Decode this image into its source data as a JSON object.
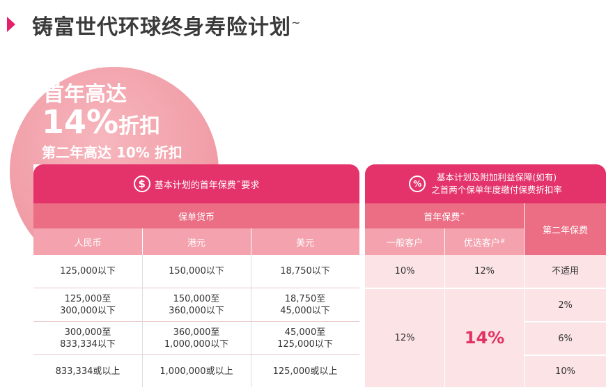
{
  "title": {
    "text": "铸富世代环球终身寿险计划",
    "mark": "~"
  },
  "promo": {
    "line1": "首年高达",
    "line2_big": "14%",
    "line2_small": "折扣",
    "line3": "第二年高达 10% 折扣"
  },
  "left_table": {
    "icon": "dollar-icon",
    "header": "基本计划的首年保费",
    "header_mark": "^",
    "header_suffix": "要求",
    "group_header": "保单货币",
    "columns": [
      "人民币",
      "港元",
      "美元"
    ],
    "rows": [
      [
        "125,000以下",
        "150,000以下",
        "18,750以下"
      ],
      [
        "125,000至\n300,000以下",
        "150,000至\n360,000以下",
        "18,750至\n45,000以下"
      ],
      [
        "300,000至\n833,334以下",
        "360,000至\n1,000,000以下",
        "45,000至\n125,000以下"
      ],
      [
        "833,334或以上",
        "1,000,000或以上",
        "125,000或以上"
      ]
    ]
  },
  "right_table": {
    "icon": "percent-icon",
    "header_line1": "基本计划及附加利益保障(如有)",
    "header_line2": "之首两个保单年度缴付保费折扣率",
    "first_year_header": "首年保费",
    "first_year_mark": "^",
    "second_year_header": "第二年保费",
    "col_general": "一般客户",
    "col_preferred": "优选客户",
    "col_preferred_mark": "#",
    "row1": {
      "general": "10%",
      "preferred": "12%",
      "second": "不适用"
    },
    "merged": {
      "general": "12%",
      "preferred": "14%"
    },
    "second_year": [
      "2%",
      "6%",
      "10%"
    ]
  },
  "colors": {
    "accent": "#e3336a",
    "mid": "#eb6e84",
    "light": "#f3a2ae",
    "cell_bg": "#fbe3e6",
    "circle": "#f09aa4"
  }
}
